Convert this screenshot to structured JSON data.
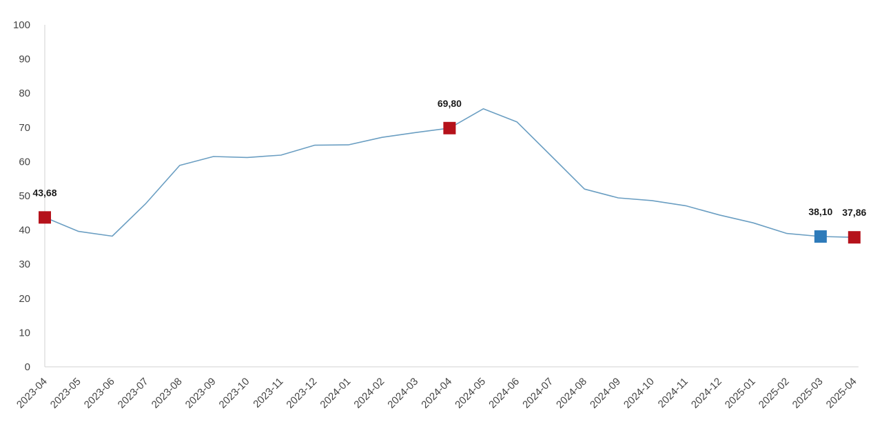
{
  "chart_data": {
    "type": "line",
    "title": "",
    "xlabel": "",
    "ylabel": "",
    "ylim": [
      0,
      100
    ],
    "yticks": [
      0,
      10,
      20,
      30,
      40,
      50,
      60,
      70,
      80,
      90,
      100
    ],
    "grid": false,
    "legend": "none",
    "categories": [
      "2023-04",
      "2023-05",
      "2023-06",
      "2023-07",
      "2023-08",
      "2023-09",
      "2023-10",
      "2023-11",
      "2023-12",
      "2024-01",
      "2024-02",
      "2024-03",
      "2024-04",
      "2024-05",
      "2024-06",
      "2024-07",
      "2024-08",
      "2024-09",
      "2024-10",
      "2024-11",
      "2024-12",
      "2025-01",
      "2025-02",
      "2025-03",
      "2025-04"
    ],
    "series": [
      {
        "values": [
          43.68,
          39.6,
          38.2,
          47.8,
          58.9,
          61.5,
          61.2,
          61.9,
          64.8,
          64.9,
          67.1,
          68.5,
          69.8,
          75.45,
          71.6,
          61.8,
          51.97,
          49.4,
          48.6,
          47.1,
          44.4,
          42.1,
          39.0,
          38.1,
          37.86
        ],
        "color": "#6a9ec2"
      }
    ],
    "markers": [
      {
        "index": 0,
        "label": "43,68",
        "color": "#b5121b"
      },
      {
        "index": 12,
        "label": "69,80",
        "color": "#b5121b"
      },
      {
        "index": 23,
        "label": "38,10",
        "color": "#2e7bba"
      },
      {
        "index": 24,
        "label": "37,86",
        "color": "#b5121b"
      }
    ],
    "axis_color": "#d0d0d0"
  }
}
